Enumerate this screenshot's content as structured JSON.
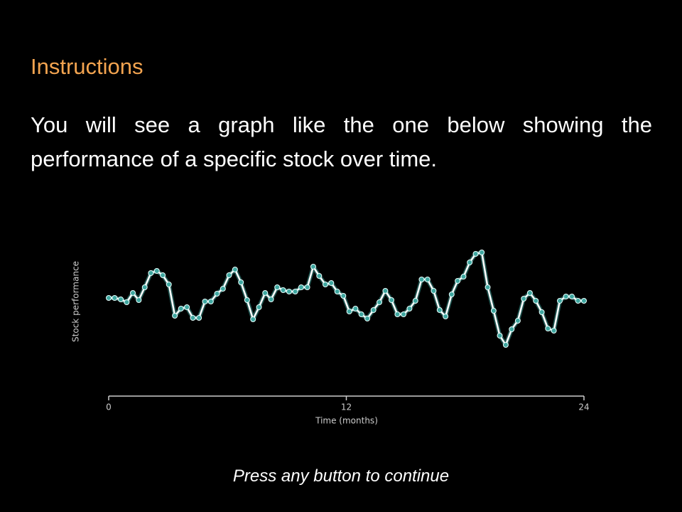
{
  "header": {
    "title": "Instructions"
  },
  "body": {
    "text": "You will see a graph like the one below showing the performance of a specific stock over time."
  },
  "chart_data": {
    "type": "line",
    "xlabel": "Time (months)",
    "ylabel": "Stock performance",
    "x": [
      0,
      0.3,
      0.61,
      0.91,
      1.22,
      1.52,
      1.82,
      2.13,
      2.43,
      2.73,
      3.04,
      3.34,
      3.65,
      3.95,
      4.25,
      4.56,
      4.86,
      5.16,
      5.47,
      5.77,
      6.08,
      6.38,
      6.68,
      6.99,
      7.29,
      7.59,
      7.9,
      8.2,
      8.51,
      8.81,
      9.11,
      9.42,
      9.72,
      10.03,
      10.33,
      10.63,
      10.94,
      11.24,
      11.54,
      11.85,
      12.15,
      12.46,
      12.76,
      13.06,
      13.37,
      13.67,
      13.97,
      14.28,
      14.58,
      14.89,
      15.19,
      15.49,
      15.8,
      16.1,
      16.41,
      16.71,
      17.01,
      17.32,
      17.62,
      17.92,
      18.23,
      18.53,
      18.84,
      19.14,
      19.44,
      19.75,
      20.05,
      20.35,
      20.66,
      20.96,
      21.27,
      21.57,
      21.87,
      22.18,
      22.48,
      22.78,
      23.09,
      23.39,
      23.7,
      24
    ],
    "values": [
      81,
      81,
      79,
      75,
      88,
      78,
      96,
      116,
      119,
      113,
      100,
      56,
      66,
      68,
      53,
      53,
      76,
      76,
      87,
      94,
      113,
      121,
      103,
      78,
      51,
      68,
      88,
      79,
      96,
      92,
      90,
      90,
      96,
      96,
      125,
      112,
      100,
      102,
      90,
      84,
      62,
      66,
      58,
      52,
      64,
      75,
      91,
      78,
      58,
      58,
      66,
      77,
      107,
      107,
      91,
      64,
      55,
      86,
      105,
      111,
      131,
      143,
      145,
      96,
      63,
      28,
      15,
      37,
      49,
      80,
      88,
      77,
      61,
      38,
      35,
      77,
      83,
      83,
      77,
      77
    ],
    "color": "#3fa7a0",
    "xlim": [
      0,
      24
    ],
    "xticks": [
      0,
      12,
      24
    ],
    "ylim": [
      0,
      160
    ]
  },
  "footer": {
    "text": "Press any button to continue"
  }
}
